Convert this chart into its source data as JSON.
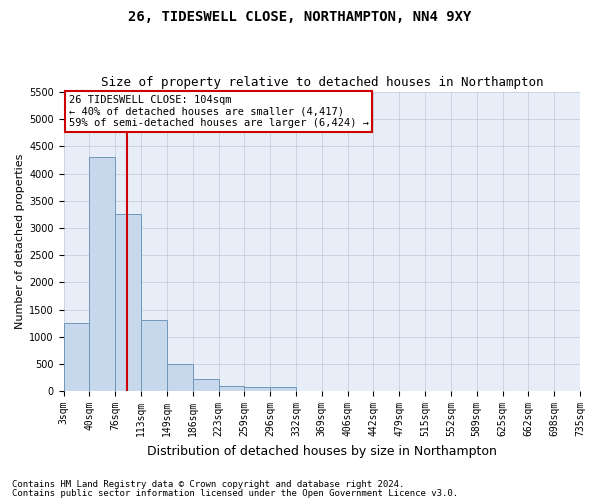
{
  "title1": "26, TIDESWELL CLOSE, NORTHAMPTON, NN4 9XY",
  "title2": "Size of property relative to detached houses in Northampton",
  "xlabel": "Distribution of detached houses by size in Northampton",
  "ylabel": "Number of detached properties",
  "footnote1": "Contains HM Land Registry data © Crown copyright and database right 2024.",
  "footnote2": "Contains public sector information licensed under the Open Government Licence v3.0.",
  "annotation_line1": "26 TIDESWELL CLOSE: 104sqm",
  "annotation_line2": "← 40% of detached houses are smaller (4,417)",
  "annotation_line3": "59% of semi-detached houses are larger (6,424) →",
  "bar_values": [
    1250,
    4300,
    3250,
    1300,
    500,
    225,
    100,
    75,
    75,
    0,
    0,
    0,
    0,
    0,
    0,
    0,
    0,
    0,
    0,
    0
  ],
  "bar_color": "#c8d8ec",
  "bar_edge_color": "#7098b8",
  "categories": [
    "3sqm",
    "40sqm",
    "76sqm",
    "113sqm",
    "149sqm",
    "186sqm",
    "223sqm",
    "259sqm",
    "296sqm",
    "332sqm",
    "369sqm",
    "406sqm",
    "442sqm",
    "479sqm",
    "515sqm",
    "552sqm",
    "589sqm",
    "625sqm",
    "662sqm",
    "698sqm",
    "735sqm"
  ],
  "vline_color": "#cc0000",
  "ylim": [
    0,
    5500
  ],
  "yticks": [
    0,
    500,
    1000,
    1500,
    2000,
    2500,
    3000,
    3500,
    4000,
    4500,
    5000,
    5500
  ],
  "background_color": "#e8eef8",
  "grid_color": "#c0cad8",
  "title1_fontsize": 10,
  "title2_fontsize": 9,
  "xlabel_fontsize": 9,
  "ylabel_fontsize": 8,
  "tick_fontsize": 7,
  "annot_fontsize": 7.5,
  "footnote_fontsize": 6.5
}
